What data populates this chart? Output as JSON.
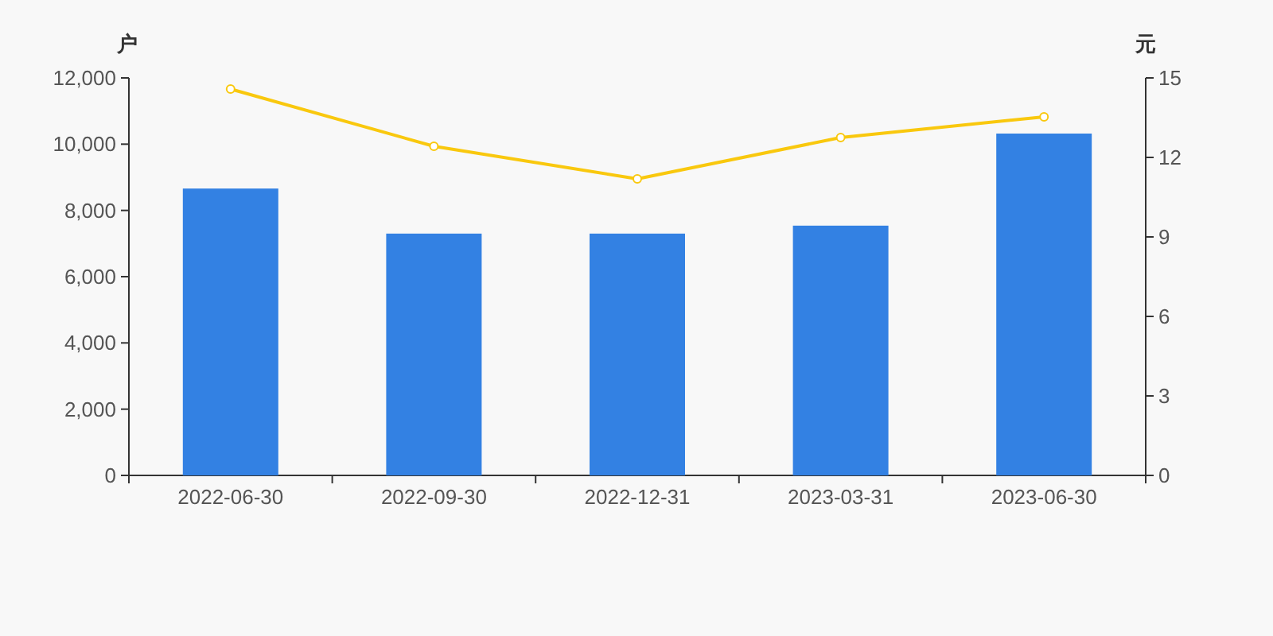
{
  "chart_data": {
    "type": "bar",
    "categories": [
      "2022-06-30",
      "2022-09-30",
      "2022-12-31",
      "2023-03-31",
      "2023-06-30"
    ],
    "ylabel": "户",
    "y2label": "元",
    "ylim": [
      0,
      12000
    ],
    "yticks": [
      {
        "value": 0,
        "label": "0"
      },
      {
        "value": 2000,
        "label": "2,000"
      },
      {
        "value": 4000,
        "label": "4,000"
      },
      {
        "value": 6000,
        "label": "6,000"
      },
      {
        "value": 8000,
        "label": "8,000"
      },
      {
        "value": 10000,
        "label": "10,000"
      },
      {
        "value": 12000,
        "label": "12,000"
      }
    ],
    "y2lim": [
      0,
      15
    ],
    "y2ticks": [
      0,
      3,
      6,
      9,
      12,
      15
    ],
    "grid": false,
    "series": [
      {
        "color": "#3381e3",
        "values": [
          8660,
          7300,
          7300,
          7540,
          10320
        ]
      },
      {
        "type": "line",
        "axis": "y2",
        "color": "#f9c80e",
        "marker": "circle",
        "line_style": "solid",
        "values": [
          14.58,
          12.42,
          11.19,
          12.75,
          13.53
        ]
      }
    ]
  }
}
